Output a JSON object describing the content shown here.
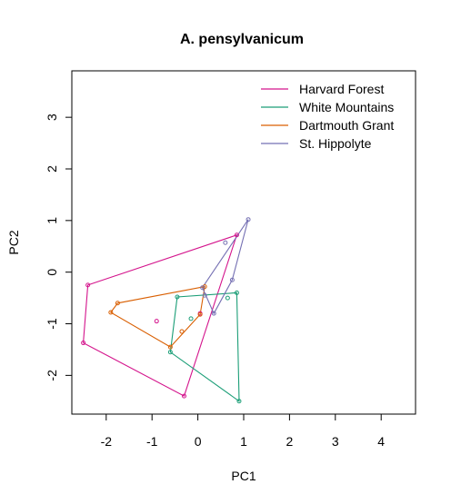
{
  "chart_data": {
    "type": "scatter",
    "title": "A. pensylvanicum",
    "xlabel": "PC1",
    "ylabel": "PC2",
    "xlim": [
      -2.75,
      4.75
    ],
    "ylim": [
      -2.75,
      3.9
    ],
    "x_ticks": [
      -2,
      -1,
      0,
      1,
      2,
      3,
      4
    ],
    "y_ticks": [
      -2,
      -1,
      0,
      1,
      2,
      3
    ],
    "x_tick_labels": [
      "-2",
      "-1",
      "0",
      "1",
      "2",
      "3",
      "4"
    ],
    "y_tick_labels": [
      "-2",
      "-1",
      "0",
      "1",
      "2",
      "3"
    ],
    "grid": false,
    "legend_position": "top-right",
    "series": [
      {
        "name": "Harvard Forest",
        "color": "#d4148c",
        "points": [
          [
            -2.4,
            -0.25
          ],
          [
            -2.5,
            -1.37
          ],
          [
            -0.3,
            -2.4
          ],
          [
            0.85,
            0.72
          ],
          [
            -0.9,
            -0.95
          ],
          [
            0.05,
            -0.8
          ]
        ],
        "hull": [
          [
            -2.4,
            -0.25
          ],
          [
            -2.5,
            -1.37
          ],
          [
            -0.3,
            -2.4
          ],
          [
            0.85,
            0.72
          ]
        ]
      },
      {
        "name": "White Mountains",
        "color": "#1b9e77",
        "points": [
          [
            -0.45,
            -0.48
          ],
          [
            -0.6,
            -1.55
          ],
          [
            0.9,
            -2.5
          ],
          [
            0.85,
            -0.4
          ],
          [
            0.65,
            -0.5
          ],
          [
            -0.15,
            -0.9
          ]
        ],
        "hull": [
          [
            -0.45,
            -0.48
          ],
          [
            -0.6,
            -1.55
          ],
          [
            0.9,
            -2.5
          ],
          [
            0.85,
            -0.4
          ]
        ]
      },
      {
        "name": "Dartmouth Grant",
        "color": "#d95f02",
        "points": [
          [
            -1.75,
            -0.6
          ],
          [
            -1.9,
            -0.78
          ],
          [
            -0.6,
            -1.45
          ],
          [
            0.05,
            -0.82
          ],
          [
            0.15,
            -0.28
          ],
          [
            -0.35,
            -1.15
          ]
        ],
        "hull": [
          [
            -1.75,
            -0.6
          ],
          [
            -1.9,
            -0.78
          ],
          [
            -0.6,
            -1.45
          ],
          [
            0.05,
            -0.82
          ],
          [
            0.15,
            -0.28
          ]
        ]
      },
      {
        "name": "St. Hippolyte",
        "color": "#7570b3",
        "points": [
          [
            1.1,
            1.02
          ],
          [
            0.6,
            0.57
          ],
          [
            0.75,
            -0.15
          ],
          [
            0.35,
            -0.8
          ],
          [
            0.1,
            -0.3
          ],
          [
            0.15,
            -0.45
          ]
        ],
        "hull": [
          [
            1.1,
            1.02
          ],
          [
            0.75,
            -0.15
          ],
          [
            0.35,
            -0.8
          ],
          [
            0.1,
            -0.3
          ]
        ]
      }
    ]
  }
}
